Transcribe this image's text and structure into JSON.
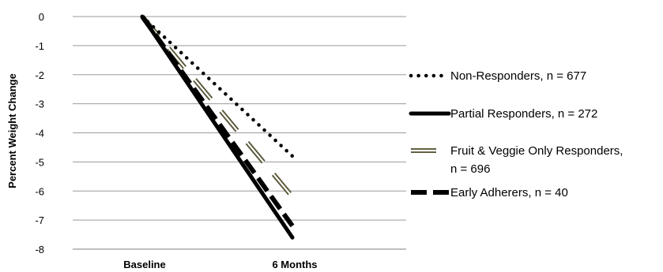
{
  "chart_data": {
    "type": "line",
    "title": "",
    "xlabel": "",
    "ylabel": "Percent Weight Change",
    "categories": [
      "Baseline",
      "6 Months"
    ],
    "ylim": [
      -8,
      0
    ],
    "yticks": [
      "0",
      "-1",
      "-2",
      "-3",
      "-4",
      "-5",
      "-6",
      "-7",
      "-8"
    ],
    "grid": true,
    "legend_position": "right",
    "series": [
      {
        "name": "Non-Responders, n = 677",
        "values": [
          0,
          -4.8
        ],
        "style": "dotted",
        "color": "#000000"
      },
      {
        "name": "Partial Responders, n = 272",
        "values": [
          0,
          -7.6
        ],
        "style": "solid",
        "color": "#000000"
      },
      {
        "name": "Fruit & Veggie Only Responders,",
        "name_line2": "n = 696",
        "values": [
          0,
          -6.2
        ],
        "style": "double",
        "color": "#5a5638"
      },
      {
        "name": "Early Adherers, n = 40",
        "values": [
          0,
          -7.2
        ],
        "style": "dashed",
        "color": "#000000"
      }
    ]
  }
}
